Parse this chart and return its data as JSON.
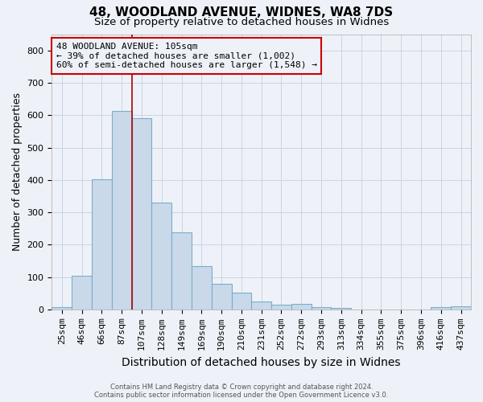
{
  "title_line1": "48, WOODLAND AVENUE, WIDNES, WA8 7DS",
  "title_line2": "Size of property relative to detached houses in Widnes",
  "xlabel": "Distribution of detached houses by size in Widnes",
  "ylabel": "Number of detached properties",
  "footnote": "Contains HM Land Registry data © Crown copyright and database right 2024.\nContains public sector information licensed under the Open Government Licence v3.0.",
  "bar_labels": [
    "25sqm",
    "46sqm",
    "66sqm",
    "87sqm",
    "107sqm",
    "128sqm",
    "149sqm",
    "169sqm",
    "190sqm",
    "210sqm",
    "231sqm",
    "252sqm",
    "272sqm",
    "293sqm",
    "313sqm",
    "334sqm",
    "355sqm",
    "375sqm",
    "396sqm",
    "416sqm",
    "437sqm"
  ],
  "bar_values": [
    7,
    105,
    403,
    613,
    591,
    330,
    237,
    135,
    79,
    51,
    24,
    15,
    18,
    8,
    4,
    1,
    0,
    0,
    0,
    8,
    10
  ],
  "bar_color": "#c9d9ea",
  "bar_edgecolor": "#7aaec8",
  "grid_color": "#c8d4e8",
  "annotation_text": "48 WOODLAND AVENUE: 105sqm\n← 39% of detached houses are smaller (1,002)\n60% of semi-detached houses are larger (1,548) →",
  "annotation_box_edgecolor": "#cc0000",
  "property_line_color": "#aa0000",
  "property_bar_index": 4,
  "ylim": [
    0,
    850
  ],
  "yticks": [
    0,
    100,
    200,
    300,
    400,
    500,
    600,
    700,
    800
  ],
  "background_color": "#eef2f8",
  "title_fontsize": 11,
  "subtitle_fontsize": 9.5,
  "xlabel_fontsize": 10,
  "ylabel_fontsize": 9,
  "tick_fontsize": 8,
  "annot_fontsize": 8
}
